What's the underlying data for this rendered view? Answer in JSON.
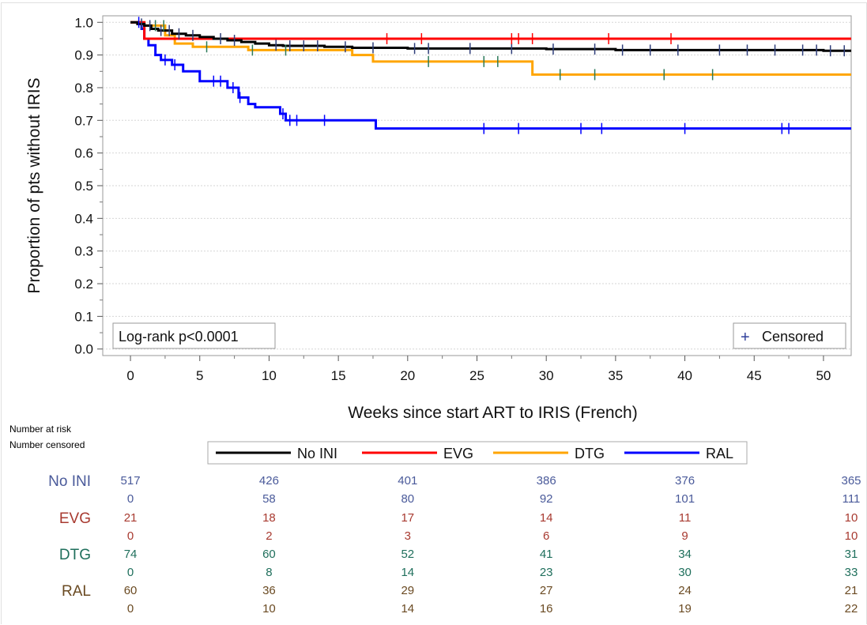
{
  "chart_data": {
    "type": "line",
    "subtype": "kaplan-meier-step",
    "xlabel": "Weeks since start ART to IRIS (French)",
    "ylabel": "Proportion of pts without IRIS",
    "xlim": [
      -2,
      52
    ],
    "ylim": [
      -0.02,
      1.02
    ],
    "xticks": [
      0,
      5,
      10,
      15,
      20,
      25,
      30,
      35,
      40,
      45,
      50
    ],
    "yticks": [
      0.0,
      0.1,
      0.2,
      0.3,
      0.4,
      0.5,
      0.6,
      0.7,
      0.8,
      0.9,
      1.0
    ],
    "ytick_labels": [
      "0.0",
      "0.1",
      "0.2",
      "0.3",
      "0.4",
      "0.5",
      "0.6",
      "0.7",
      "0.8",
      "0.9",
      "1.0"
    ],
    "grid": "horizontal dotted",
    "annotation": "Log-rank p<0.0001",
    "censored_legend": "Censored",
    "censored_symbol": "+",
    "legend_placement": "bottom",
    "series": [
      {
        "name": "No INI",
        "color": "#000000",
        "x": [
          0,
          0.5,
          1,
          1.5,
          2,
          3,
          4,
          5,
          6,
          7,
          8,
          9,
          10,
          11,
          14,
          16,
          20,
          25,
          30,
          35,
          40,
          45,
          50,
          52
        ],
        "y": [
          1.0,
          0.995,
          0.99,
          0.98,
          0.975,
          0.965,
          0.96,
          0.955,
          0.95,
          0.945,
          0.94,
          0.935,
          0.93,
          0.928,
          0.925,
          0.922,
          0.92,
          0.92,
          0.918,
          0.915,
          0.915,
          0.915,
          0.913,
          0.913
        ],
        "censored_x": [
          0.8,
          1.4,
          2.2,
          2.8,
          3.5,
          4.5,
          6.5,
          7.5,
          10.5,
          11.5,
          12.5,
          13.5,
          15.5,
          17.5,
          20.5,
          21.5,
          24.5,
          27.5,
          30.5,
          33.5,
          35.5,
          37.5,
          39.5,
          42.5,
          44.5,
          46.5,
          48.5,
          49.5,
          50.5,
          51.5
        ]
      },
      {
        "name": "EVG",
        "color": "#ff0000",
        "x": [
          0,
          1.0,
          52
        ],
        "y": [
          1.0,
          0.95,
          0.95
        ],
        "censored_x": [
          18.5,
          21.0,
          27.5,
          28.0,
          29.0,
          34.5,
          39.0
        ]
      },
      {
        "name": "DTG",
        "color": "#ffa500",
        "x": [
          0,
          1,
          2.5,
          3.2,
          4.5,
          8.5,
          11,
          12,
          16,
          17.5,
          29,
          52
        ],
        "y": [
          1.0,
          0.99,
          0.96,
          0.935,
          0.925,
          0.915,
          0.915,
          0.915,
          0.9,
          0.88,
          0.84,
          0.84
        ],
        "censored_x": [
          1.8,
          2.4,
          5.5,
          8.8,
          11.2,
          21.5,
          25.5,
          26.5,
          31.0,
          33.5,
          38.5,
          42.0
        ]
      },
      {
        "name": "RAL",
        "color": "#0000ff",
        "x": [
          0,
          0.8,
          1.0,
          1.3,
          1.8,
          2.2,
          3.0,
          3.8,
          5.0,
          7.0,
          7.8,
          8.5,
          9.0,
          10.8,
          11.2,
          17.7,
          52
        ],
        "y": [
          1.0,
          0.98,
          0.95,
          0.93,
          0.9,
          0.885,
          0.87,
          0.85,
          0.82,
          0.8,
          0.77,
          0.75,
          0.74,
          0.72,
          0.7,
          0.675,
          0.675
        ],
        "censored_x": [
          0.6,
          2.5,
          3.2,
          6.0,
          6.5,
          7.4,
          7.9,
          11.0,
          11.5,
          12.0,
          14.0,
          25.5,
          28.0,
          32.5,
          34.0,
          40.0,
          47.0,
          47.5
        ]
      }
    ],
    "risk_table": {
      "heading_at_risk": "Number at risk",
      "heading_censored": "Number censored",
      "times": [
        0,
        10,
        20,
        30,
        40,
        52
      ],
      "rows": [
        {
          "name": "No INI",
          "color": "#4a5a9a",
          "at_risk": [
            "517",
            "426",
            "401",
            "386",
            "376",
            "365"
          ],
          "censored": [
            "0",
            "58",
            "80",
            "92",
            "101",
            "111"
          ]
        },
        {
          "name": "EVG",
          "color": "#a83a30",
          "at_risk": [
            "21",
            "18",
            "17",
            "14",
            "11",
            "10"
          ],
          "censored": [
            "0",
            "2",
            "3",
            "6",
            "9",
            "10"
          ]
        },
        {
          "name": "DTG",
          "color": "#1f6f5c",
          "at_risk": [
            "74",
            "60",
            "52",
            "41",
            "34",
            "31"
          ],
          "censored": [
            "0",
            "8",
            "14",
            "23",
            "30",
            "33"
          ]
        },
        {
          "name": "RAL",
          "color": "#6a4a22",
          "at_risk": [
            "60",
            "36",
            "29",
            "27",
            "24",
            "21"
          ],
          "censored": [
            "0",
            "10",
            "14",
            "16",
            "19",
            "22"
          ]
        }
      ]
    }
  }
}
